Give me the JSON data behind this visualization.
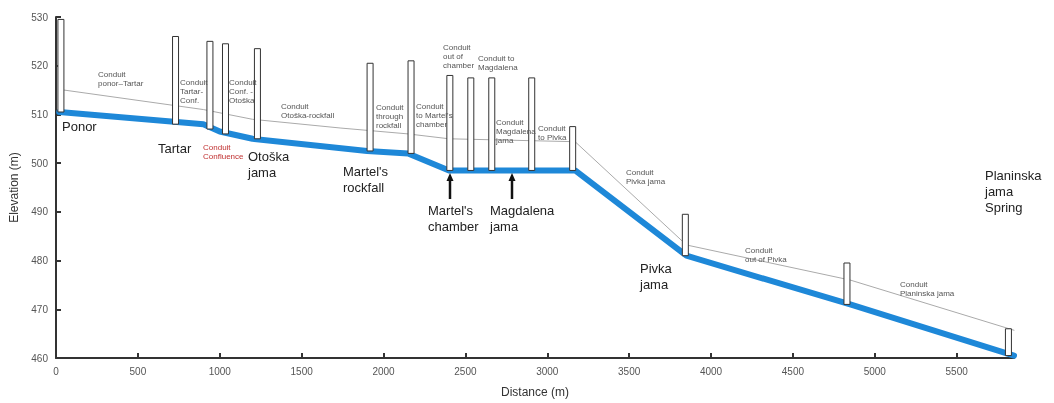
{
  "chart_data": {
    "type": "line",
    "xlabel": "Distance (m)",
    "ylabel": "Elevation (m)",
    "xlim": [
      0,
      5850
    ],
    "xticks": [
      0,
      500,
      1000,
      1500,
      2000,
      2500,
      3000,
      3500,
      4000,
      4500,
      5000,
      5500
    ],
    "ylim": [
      460,
      530
    ],
    "yticks": [
      460,
      470,
      480,
      490,
      500,
      510,
      520,
      530
    ],
    "grid": false,
    "marker": "none",
    "series": [
      {
        "color": "#aaaaaa",
        "x": [
          50,
          900,
          1200,
          1740,
          2150,
          2400,
          3170,
          3850,
          4850,
          5850
        ],
        "values": [
          515,
          511,
          509,
          507.2,
          506,
          505,
          504.4,
          483.2,
          476,
          465.7
        ]
      },
      {
        "color": "#1e88d8",
        "x": [
          20,
          900,
          1000,
          1200,
          1900,
          2150,
          2400,
          3170,
          3850,
          4850,
          5850
        ],
        "values": [
          510.5,
          508,
          506.5,
          505,
          502.5,
          502,
          498.5,
          498.5,
          481,
          471,
          460.5
        ]
      },
      {
        "type": "bar",
        "color": "#ffffff",
        "x": [
          30,
          730,
          940,
          1035,
          1230,
          1918,
          2168,
          2405,
          2533,
          2661,
          2905,
          3155,
          3843,
          4830,
          5816
        ],
        "base": [
          510.5,
          508,
          507,
          506,
          505,
          502.5,
          502,
          498.5,
          498.5,
          498.5,
          498.5,
          498.5,
          481,
          471,
          460.5
        ],
        "values": [
          19,
          18,
          18,
          18.5,
          18.5,
          18,
          19,
          19.5,
          19,
          19,
          19,
          9,
          8.5,
          8.5,
          5.5
        ]
      }
    ],
    "annotations": [
      "Ponor",
      "Tartar",
      "Otoška\njama",
      "Martel's\nrockfall",
      "Martel's\nchamber",
      "Magdalena\njama",
      "Pivka\njama",
      "Planinska\njama\nSpring",
      "Conduit\nponor–Tartar",
      "Conduit\nTartar-\nConf.",
      "Conduit\nConfluence",
      "Conduit\nConf. -\nOtoška",
      "Conduit\nOtoška-rockfall",
      "Conduit\nthrough\nrockfall",
      "Conduit\nto Martel's\nchamber",
      "Conduit\nout of\nchamber",
      "Conduit to\nMagdalena",
      "Conduit\nMagdalena\njama",
      "Conduit\nto Pivka",
      "Conduit\nPivka jama",
      "Conduit\nout of Pivka",
      "Conduit\nPlaninska jama"
    ]
  }
}
